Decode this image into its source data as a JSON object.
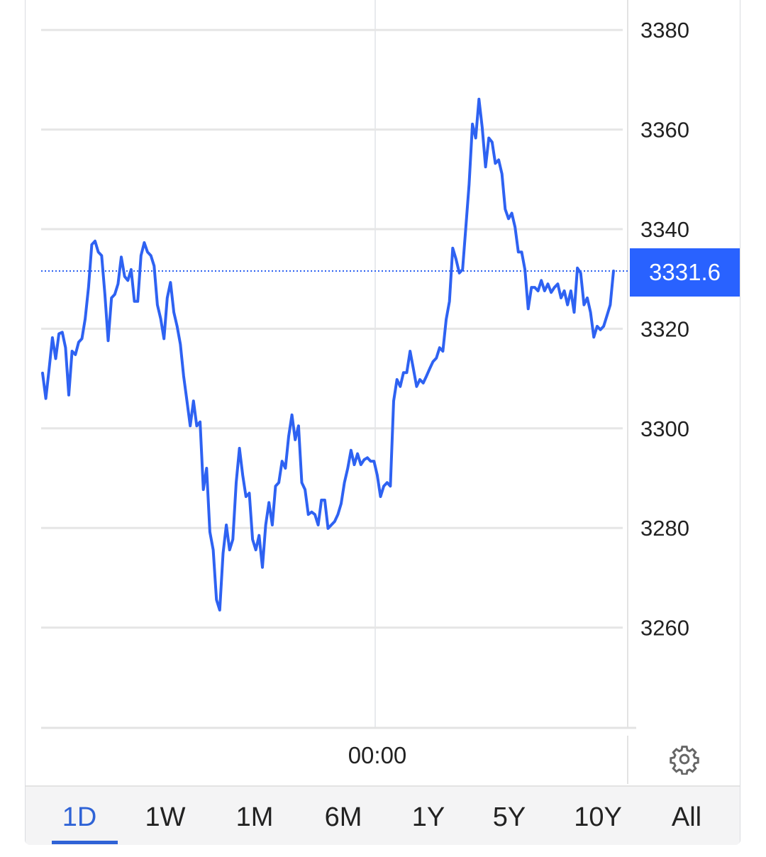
{
  "chart_data": {
    "type": "line",
    "title": "",
    "xlabel": "",
    "ylabel": "",
    "x_tick_labels": [
      "00:00"
    ],
    "y_ticks": [
      3260,
      3280,
      3300,
      3320,
      3340,
      3360,
      3380
    ],
    "ylim": [
      3240,
      3385
    ],
    "grid": true,
    "y_axis_side": "right",
    "line_color": "#2e62f2",
    "current_value": 3331.6,
    "current_value_label": "3331.6",
    "series": [
      {
        "values": [
          3311.1,
          3306,
          3312,
          3318.2,
          3314,
          3319,
          3319.3,
          3316.2,
          3306.7,
          3315.5,
          3314.8,
          3317.3,
          3318,
          3322,
          3328.3,
          3336.9,
          3337.6,
          3335.4,
          3334.7,
          3326.9,
          3317.6,
          3326.2,
          3326.9,
          3329,
          3334.4,
          3330.5,
          3329.7,
          3331.9,
          3325.5,
          3325.5,
          3334.7,
          3337.3,
          3335.4,
          3334.7,
          3332.6,
          3324.8,
          3322,
          3318,
          3326.2,
          3329.3,
          3323.3,
          3320.5,
          3316.9,
          3310.5,
          3305.5,
          3300.5,
          3305.5,
          3300.5,
          3301.3,
          3287.7,
          3292,
          3279.2,
          3275.6,
          3265.6,
          3263.5,
          3274.9,
          3280.6,
          3275.6,
          3277.7,
          3289.1,
          3296,
          3290.6,
          3286.3,
          3287,
          3277.7,
          3275.6,
          3278.5,
          3272.1,
          3280.6,
          3285.1,
          3280.6,
          3288.4,
          3289.1,
          3293.4,
          3292,
          3298.4,
          3302.7,
          3297.7,
          3300.5,
          3289.1,
          3287.7,
          3282.7,
          3283.2,
          3282.7,
          3280.6,
          3285.6,
          3285.6,
          3279.9,
          3280.6,
          3281.3,
          3282.7,
          3284.9,
          3289.1,
          3292,
          3295.6,
          3292.7,
          3294.9,
          3292.7,
          3293.7,
          3294.1,
          3293.4,
          3293.4,
          3290.6,
          3286.3,
          3288.4,
          3289.1,
          3288.4,
          3305.5,
          3309.8,
          3308.4,
          3311.2,
          3311.2,
          3315.5,
          3312,
          3308.4,
          3309.8,
          3309.1,
          3310.5,
          3312,
          3313.4,
          3314.1,
          3316.2,
          3315.5,
          3321.9,
          3325.5,
          3336.2,
          3334,
          3331.2,
          3331.9,
          3340.4,
          3349,
          3361.1,
          3358.3,
          3366.1,
          3360.4,
          3352.5,
          3358.3,
          3357.5,
          3353.2,
          3353.9,
          3351.1,
          3344,
          3342.1,
          3343.2,
          3340.4,
          3335.4,
          3335.4,
          3331.9,
          3324,
          3328.3,
          3328.3,
          3327.6,
          3329.7,
          3327.6,
          3329,
          3327.3,
          3328.3,
          3329,
          3326.2,
          3327.6,
          3324.8,
          3327.6,
          3323.3,
          3332.2,
          3331.2,
          3324.8,
          3326.2,
          3323.3,
          3318.3,
          3320.5,
          3319.8,
          3320.5,
          3322.6,
          3324.8,
          3331.6
        ]
      }
    ]
  },
  "settings_icon": "gear-icon",
  "tabs": [
    {
      "label": "1D",
      "active": true
    },
    {
      "label": "1W"
    },
    {
      "label": "1M"
    },
    {
      "label": "6M"
    },
    {
      "label": "1Y"
    },
    {
      "label": "5Y"
    },
    {
      "label": "10Y"
    },
    {
      "label": "All"
    }
  ]
}
